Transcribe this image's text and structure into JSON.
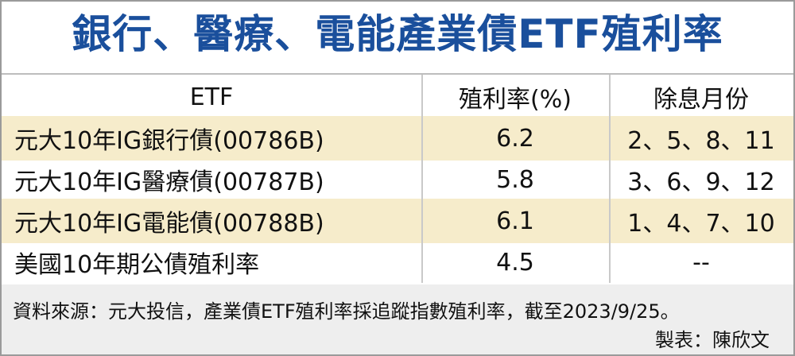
{
  "title": "銀行、醫療、電能產業債ETF殖利率",
  "table": {
    "headers": [
      "ETF",
      "殖利率(%)",
      "除息月份"
    ],
    "rows": [
      {
        "name": "元大10年IG銀行債(00786B)",
        "yield": "6.2",
        "months": "2、5、8、11"
      },
      {
        "name": "元大10年IG醫療債(00787B)",
        "yield": "5.8",
        "months": "3、6、9、12"
      },
      {
        "name": "元大10年IG電能債(00788B)",
        "yield": "6.1",
        "months": "1、4、7、10"
      },
      {
        "name": "美國10年期公債殖利率",
        "yield": "4.5",
        "months": "--"
      }
    ]
  },
  "footer": {
    "note": "資料來源：元大投信，產業債ETF殖利率採追蹤指數殖利率，截至2023/9/25。",
    "credit": "製表：陳欣文"
  },
  "colors": {
    "title": "#1a4f9c",
    "row_tint": "#f6eccb",
    "footer_bg": "#eeeeee"
  }
}
